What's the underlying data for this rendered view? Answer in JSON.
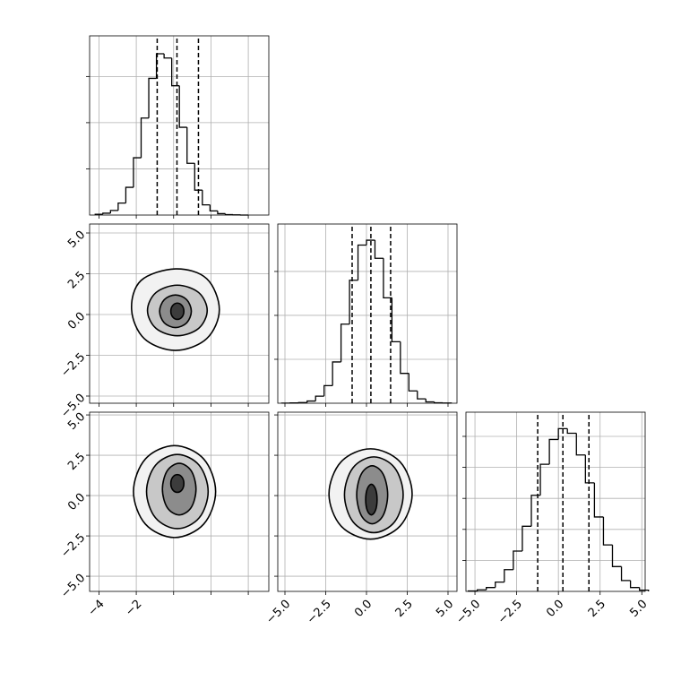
{
  "chart_data": [
    {
      "type": "histogram",
      "color": "#000000",
      "grid": true,
      "bins": [
        -4.2,
        -3.79,
        -3.38,
        -2.97,
        -2.56,
        -2.15,
        -1.74,
        -1.33,
        -0.92,
        -0.51,
        -0.1,
        0.31,
        0.72,
        1.13,
        1.54,
        1.95,
        2.36,
        2.77,
        3.18,
        3.59,
        4.0
      ],
      "values": [
        8,
        20,
        50,
        130,
        300,
        620,
        1050,
        1480,
        1746,
        1700,
        1400,
        950,
        560,
        270,
        110,
        45,
        15,
        5,
        2,
        0
      ],
      "quantiles": [
        -0.88,
        0.18,
        1.33
      ],
      "xlim": [
        -4.5,
        5.1
      ],
      "xticks": [
        -4,
        -2,
        0,
        2,
        4
      ],
      "ylim": [
        0,
        1940
      ],
      "yticks": [
        500,
        1000,
        1500
      ]
    },
    {
      "type": "contour",
      "grid": true,
      "xlim": [
        -4.5,
        5.1
      ],
      "xticks": [
        -4,
        -2,
        0,
        2,
        4
      ],
      "ylim": [
        -5.44,
        5.55
      ],
      "yticks": [
        {
          "value": -5,
          "label": "−5.0"
        },
        {
          "value": -2.5,
          "label": "−2.5"
        },
        {
          "value": 0,
          "label": "0.0"
        },
        {
          "value": 2.5,
          "label": "2.5"
        },
        {
          "value": 5,
          "label": "5.0"
        }
      ],
      "series": [
        {
          "color": "#f2f2f2",
          "x": [
            2.45,
            1.77,
            0.1,
            -1.75,
            -2.25,
            -1.57,
            0.1,
            1.77
          ],
          "y": [
            0.3,
            2.2,
            2.8,
            2.08,
            0.3,
            -1.48,
            -2.2,
            -1.48
          ]
        },
        {
          "color": "#c8c8c8",
          "x": [
            1.8,
            1.34,
            0.2,
            -0.94,
            -1.4,
            -0.94,
            0.2,
            1.34
          ],
          "y": [
            0.25,
            1.35,
            1.8,
            1.35,
            0.25,
            -0.85,
            -1.3,
            -0.85
          ]
        },
        {
          "color": "#8c8c8c",
          "x": [
            0.95,
            0.7,
            0.1,
            -0.5,
            -0.75,
            -0.5,
            0.1,
            0.7
          ],
          "y": [
            0.2,
            0.91,
            1.2,
            0.91,
            0.2,
            -0.51,
            -0.8,
            -0.51
          ]
        },
        {
          "color": "#3c3c3c",
          "x": [
            0.55,
            0.45,
            0.2,
            -0.05,
            -0.15,
            -0.05,
            0.2,
            0.45
          ],
          "y": [
            0.2,
            0.55,
            0.7,
            0.55,
            0.2,
            -0.15,
            -0.3,
            -0.15
          ]
        }
      ]
    },
    {
      "type": "histogram",
      "color": "#000000",
      "grid": true,
      "bins": [
        -5.2,
        -4.68,
        -4.16,
        -3.64,
        -3.12,
        -2.6,
        -2.08,
        -1.56,
        -1.04,
        -0.52,
        0,
        0.52,
        1.04,
        1.56,
        2.08,
        2.6,
        3.12,
        3.64,
        4.16,
        4.68,
        5.2
      ],
      "values": [
        1,
        3,
        8,
        25,
        80,
        200,
        470,
        900,
        1400,
        1800,
        1856,
        1650,
        1200,
        700,
        340,
        140,
        50,
        15,
        5,
        2
      ],
      "quantiles": [
        -0.88,
        0.27,
        1.48
      ],
      "xlim": [
        -5.44,
        5.55
      ],
      "xticks": [
        -5,
        -2.5,
        0,
        2.5,
        5
      ],
      "ylim": [
        0,
        2040
      ],
      "yticks": [
        500,
        1000,
        1500
      ]
    },
    {
      "type": "contour",
      "grid": true,
      "xlim": [
        -4.5,
        5.1
      ],
      "xticks": [
        {
          "value": -4,
          "label": "−4"
        },
        {
          "value": -2,
          "label": "−2"
        },
        0,
        2,
        4
      ],
      "ylim": [
        -5.94,
        5.17
      ],
      "yticks": [
        {
          "value": -5,
          "label": "−5.0"
        },
        {
          "value": -2.5,
          "label": "−2.5"
        },
        {
          "value": 0,
          "label": "0.0"
        },
        {
          "value": 2.5,
          "label": "2.5"
        },
        {
          "value": 5,
          "label": "5.0"
        }
      ],
      "series": [
        {
          "color": "#f2f2f2",
          "x": [
            2.25,
            1.61,
            0.05,
            -1.51,
            -2.15,
            -1.51,
            0.05,
            1.61
          ],
          "y": [
            0.25,
            2.27,
            3.1,
            2.27,
            0.25,
            -1.77,
            -2.6,
            -1.77
          ]
        },
        {
          "color": "#c8c8c8",
          "x": [
            1.85,
            1.37,
            0.2,
            -0.97,
            -1.45,
            -0.97,
            0.2,
            1.37
          ],
          "y": [
            0.25,
            1.88,
            2.55,
            1.88,
            0.25,
            -1.38,
            -2.05,
            -1.38
          ]
        },
        {
          "color": "#8c8c8c",
          "x": [
            1.2,
            0.94,
            0.3,
            -0.34,
            -0.6,
            -0.34,
            0.3,
            0.94
          ],
          "y": [
            0.4,
            1.54,
            2.0,
            1.54,
            0.4,
            -0.74,
            -1.2,
            -0.74
          ]
        },
        {
          "color": "#3c3c3c",
          "x": [
            0.55,
            0.45,
            0.2,
            -0.05,
            -0.15,
            -0.05,
            0.2,
            0.45
          ],
          "y": [
            0.75,
            1.14,
            1.3,
            1.14,
            0.75,
            0.36,
            0.2,
            0.36
          ]
        }
      ]
    },
    {
      "type": "contour",
      "grid": true,
      "xlim": [
        -5.44,
        5.55
      ],
      "xticks": [
        {
          "value": -5,
          "label": "−5.0"
        },
        {
          "value": -2.5,
          "label": "−2.5"
        },
        {
          "value": 0,
          "label": "0.0"
        },
        {
          "value": 2.5,
          "label": "2.5"
        },
        {
          "value": 5,
          "label": "5.0"
        }
      ],
      "ylim": [
        -5.94,
        5.17
      ],
      "yticks": [
        -5,
        -2.5,
        0,
        2.5,
        5
      ],
      "series": [
        {
          "color": "#f2f2f2",
          "x": [
            2.8,
            2.06,
            0.25,
            -1.56,
            -2.3,
            -1.56,
            0.25,
            2.06
          ],
          "y": [
            0.1,
            2.09,
            2.9,
            2.09,
            0.1,
            -1.89,
            -2.7,
            -1.89
          ]
        },
        {
          "color": "#c8c8c8",
          "x": [
            2.25,
            1.73,
            0.45,
            -0.83,
            -1.35,
            -0.83,
            0.45,
            1.73
          ],
          "y": [
            0.05,
            1.72,
            2.4,
            1.72,
            0.05,
            -1.62,
            -2.3,
            -1.62
          ]
        },
        {
          "color": "#8c8c8c",
          "x": [
            1.3,
            1.02,
            0.35,
            -0.32,
            -0.6,
            -0.32,
            0.35,
            1.02
          ],
          "y": [
            0.05,
            1.33,
            1.85,
            1.33,
            0.05,
            -1.23,
            -1.75,
            -1.23
          ]
        },
        {
          "color": "#3c3c3c",
          "x": [
            0.65,
            0.55,
            0.3,
            0.05,
            -0.05,
            0.05,
            0.3,
            0.55
          ],
          "y": [
            -0.25,
            0.42,
            0.7,
            0.42,
            -0.25,
            -0.92,
            -1.2,
            -0.92
          ]
        }
      ]
    },
    {
      "type": "histogram",
      "color": "#000000",
      "grid": true,
      "bins": [
        -5.4,
        -4.86,
        -4.32,
        -3.78,
        -3.24,
        -2.7,
        -2.16,
        -1.62,
        -1.08,
        -0.54,
        0,
        0.54,
        1.08,
        1.62,
        2.16,
        2.7,
        3.24,
        3.78,
        4.32,
        4.86,
        5.4
      ],
      "values": [
        3,
        10,
        25,
        60,
        140,
        260,
        420,
        620,
        820,
        980,
        1050,
        1020,
        880,
        700,
        480,
        300,
        160,
        70,
        25,
        8
      ],
      "quantiles": [
        -1.24,
        0.27,
        1.83
      ],
      "xlim": [
        -5.54,
        5.2
      ],
      "xticks": [
        {
          "value": -5,
          "label": "−5.0"
        },
        {
          "value": -2.5,
          "label": "−2.5"
        },
        {
          "value": 0,
          "label": "0.0"
        },
        {
          "value": 2.5,
          "label": "2.5"
        },
        {
          "value": 5,
          "label": "5.0"
        }
      ],
      "ylim": [
        0,
        1156
      ],
      "yticks": [
        200,
        400,
        600,
        800,
        1000
      ]
    }
  ]
}
